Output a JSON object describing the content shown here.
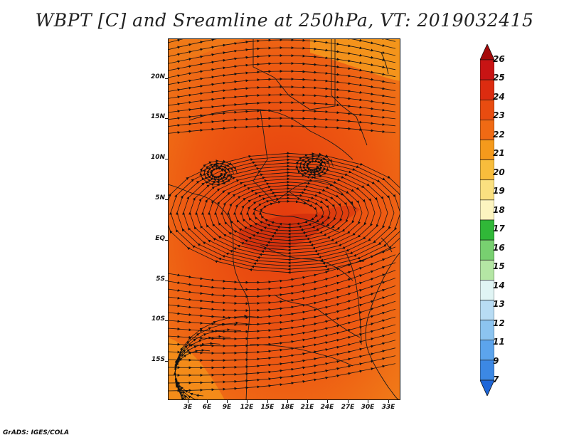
{
  "title": "WBPT [C] and Sreamline at 250hPa, VT: 2019032415",
  "credit": "GrADS: IGES/COLA",
  "map": {
    "lat_labels": [
      "20N",
      "15N",
      "10N",
      "5N",
      "EQ",
      "5S",
      "10S",
      "15S"
    ],
    "lon_labels": [
      "3E",
      "6E",
      "9E",
      "12E",
      "15E",
      "18E",
      "21E",
      "24E",
      "27E",
      "30E",
      "33E"
    ],
    "fill_colors": {
      "base": "#ef5a10",
      "warm": "#f07a18",
      "hot": "#cc2a0c",
      "edge": "#f59a1c"
    }
  },
  "colorbar": {
    "labels": [
      "26",
      "25",
      "24",
      "23",
      "22",
      "21",
      "20",
      "19",
      "18",
      "17",
      "16",
      "15",
      "14",
      "13",
      "12",
      "11",
      "9",
      "7"
    ],
    "colors": [
      "#a50a0a",
      "#c81414",
      "#dc2c10",
      "#e84c10",
      "#f06a14",
      "#f59a1c",
      "#f8bd3c",
      "#fae080",
      "#fcf4c0",
      "#30b838",
      "#78d070",
      "#b4e6a4",
      "#e0f4f4",
      "#b8dcf4",
      "#8cc4f0",
      "#5ca4ec",
      "#3c88e4",
      "#1e66d8"
    ]
  }
}
